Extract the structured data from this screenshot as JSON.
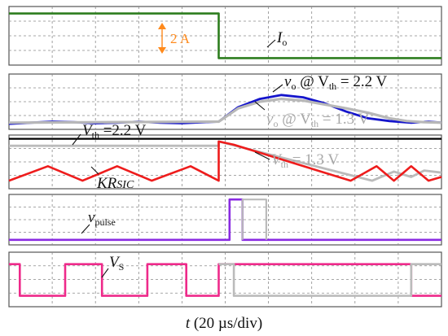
{
  "colors": {
    "io": "#2d7d1e",
    "vo_hi": "#1515cc",
    "vo_lo": "#b8b8b8",
    "vth_line": "#000000",
    "kr_hi": "#ee1c1c",
    "kr_lo": "#bbbbbb",
    "pulse": "#8a2be2",
    "vs_hi": "#ee2a8a",
    "vs_lo": "#bbbbbb",
    "annotation": "#ff8a1c"
  },
  "labels": {
    "step": "2 A",
    "io_base": "I",
    "io_sub": "o",
    "vo_hi_pre": "v",
    "vo_hi_sub": "o",
    "vo_hi_mid": " @ V",
    "vo_hi_sub2": "th",
    "vo_hi_post": " = 2.2 V",
    "vo_lo_pre": "v",
    "vo_lo_sub": "o",
    "vo_lo_mid": " @ V",
    "vo_lo_sub2": "th",
    "vo_lo_post": " = 1.3 V",
    "vth_hi_pre": "V",
    "vth_hi_sub": "th",
    "vth_hi_post": " =2.2 V",
    "vth_lo_pre": "V",
    "vth_lo_sub": "th",
    "vth_lo_post": " = 1.3 V",
    "kr": "KR",
    "kr_sub": "SIC",
    "pulse_pre": "v",
    "pulse_sub": "pulse",
    "vs_pre": "V",
    "vs_sub": "S",
    "xaxis_t": "t",
    "xaxis_rest": " (20 µs/div)"
  },
  "chart_data": {
    "type": "line",
    "xlabel": "t (20 µs/div)",
    "x_divisions": 10,
    "grid": true,
    "panels": [
      {
        "id": "io",
        "series": [
          {
            "name": "Io",
            "x": [
              0,
              4.85,
              4.85,
              10
            ],
            "y": [
              0.88,
              0.88,
              0.12,
              0.12
            ]
          }
        ],
        "annotations": [
          "2 A"
        ]
      },
      {
        "id": "vo",
        "series": [
          {
            "name": "vo @ Vth = 2.2 V",
            "x": [
              0,
              0.5,
              1,
              1.5,
              2,
              2.5,
              3,
              3.5,
              4,
              4.5,
              4.85,
              5.3,
              5.8,
              6.3,
              6.8,
              7.3,
              7.8,
              8.3,
              8.8,
              9.3,
              9.7,
              10
            ],
            "y": [
              0.1,
              0.12,
              0.14,
              0.13,
              0.11,
              0.12,
              0.14,
              0.12,
              0.11,
              0.13,
              0.14,
              0.4,
              0.55,
              0.62,
              0.58,
              0.47,
              0.32,
              0.2,
              0.15,
              0.12,
              0.14,
              0.12
            ]
          },
          {
            "name": "vo @ Vth = 1.3 V",
            "x": [
              0,
              4.85,
              5.3,
              5.8,
              6.3,
              6.8,
              7.3,
              7.8,
              8.3,
              8.8,
              9.2,
              9.6,
              10
            ],
            "y": [
              0.12,
              0.14,
              0.38,
              0.5,
              0.55,
              0.52,
              0.45,
              0.38,
              0.3,
              0.2,
              0.15,
              0.13,
              0.12
            ]
          }
        ]
      },
      {
        "id": "kr",
        "series": [
          {
            "name": "Vth = 2.2 V",
            "x": [
              0,
              10
            ],
            "y": [
              0.93,
              0.93
            ]
          },
          {
            "name": "Vth = 1.3 V",
            "x": [
              0,
              4.85,
              4.85,
              8.4,
              8.9,
              9.3,
              9.6,
              10
            ],
            "y": [
              0.8,
              0.8,
              0.88,
              0.15,
              0.32,
              0.22,
              0.34,
              0.3
            ]
          },
          {
            "name": "KRsic",
            "x": [
              0,
              0.9,
              1.7,
              2.5,
              3.3,
              4.2,
              4.85,
              4.85,
              5.2,
              7.9,
              8.5,
              8.9,
              9.3,
              9.7,
              10
            ],
            "y": [
              0.15,
              0.42,
              0.15,
              0.42,
              0.15,
              0.42,
              0.15,
              0.88,
              0.82,
              0.15,
              0.42,
              0.15,
              0.42,
              0.15,
              0.22
            ]
          }
        ]
      },
      {
        "id": "pulse",
        "series": [
          {
            "name": "vpulse",
            "x": [
              0,
              5.1,
              5.1,
              5.4,
              5.4,
              10
            ],
            "y": [
              0.1,
              0.1,
              0.9,
              0.9,
              0.1,
              0.1
            ]
          },
          {
            "name": "vpulse (1.3 V)",
            "x": [
              5.4,
              5.4,
              5.95,
              5.95
            ],
            "y": [
              0.1,
              0.9,
              0.9,
              0.1
            ]
          }
        ]
      },
      {
        "id": "vs",
        "series": [
          {
            "name": "VS",
            "x": [
              0,
              0.25,
              0.25,
              1.3,
              1.3,
              2.15,
              2.15,
              3.2,
              3.2,
              4.1,
              4.1,
              4.85,
              4.85,
              9.3,
              9.3,
              10
            ],
            "y": [
              0.78,
              0.78,
              0.2,
              0.2,
              0.78,
              0.78,
              0.2,
              0.2,
              0.78,
              0.78,
              0.2,
              0.2,
              0.78,
              0.78,
              0.2,
              0.2
            ]
          },
          {
            "name": "VS (Vth = 1.3 V)",
            "x": [
              4.85,
              5.2,
              5.2,
              9.3,
              9.3,
              10
            ],
            "y": [
              0.78,
              0.78,
              0.2,
              0.2,
              0.78,
              0.78
            ]
          }
        ]
      }
    ]
  }
}
